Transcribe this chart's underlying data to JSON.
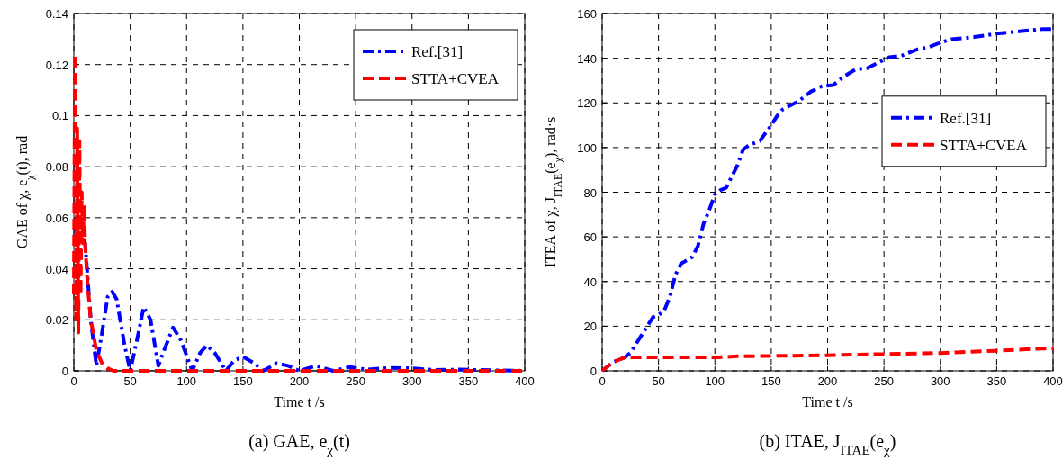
{
  "chart_data": [
    {
      "type": "line",
      "title": "(a) GAE, e$_{χ}$(t)",
      "xlabel": "Time t /s",
      "ylabel": "GAE of χ, e$_{χ}$(t), rad",
      "xlim": [
        0,
        400
      ],
      "xticks": [
        0,
        50,
        100,
        150,
        200,
        250,
        300,
        350,
        400
      ],
      "ylim": [
        0,
        0.14
      ],
      "yticks": [
        0,
        0.02,
        0.04,
        0.06,
        0.08,
        0.1,
        0.12,
        0.14
      ],
      "grid": true,
      "legend": "top right",
      "series": [
        {
          "name": "Ref.[31]",
          "color": "#0000ff",
          "line_style": "dashdot",
          "x": [
            0,
            5,
            10,
            15,
            20,
            25,
            30,
            34,
            38,
            45,
            50,
            55,
            62,
            68,
            75,
            80,
            88,
            95,
            105,
            112,
            118,
            125,
            135,
            142,
            150,
            160,
            168,
            180,
            190,
            200,
            215,
            230,
            245,
            260,
            280,
            300,
            320,
            340,
            400
          ],
          "values": [
            0.055,
            0.057,
            0.05,
            0.02,
            0.002,
            0.015,
            0.029,
            0.031,
            0.028,
            0.01,
            0,
            0.01,
            0.025,
            0.02,
            0.002,
            0.008,
            0.017,
            0.012,
            0,
            0.007,
            0.01,
            0.007,
            0,
            0.004,
            0.0055,
            0.003,
            0,
            0.003,
            0.002,
            0,
            0.002,
            0,
            0.0015,
            0.0005,
            0.0012,
            0.001,
            0.0003,
            0.0005,
            0
          ]
        },
        {
          "name": "STTA+CVEA",
          "color": "#ff0000",
          "line_style": "dashed",
          "x": [
            0,
            1,
            2,
            3,
            4,
            5,
            6,
            7,
            8,
            9,
            10,
            12,
            15,
            20,
            25,
            30,
            35,
            400
          ],
          "values": [
            0.03,
            0.124,
            0.02,
            0.095,
            0.015,
            0.09,
            0.03,
            0.07,
            0.05,
            0.065,
            0.05,
            0.035,
            0.02,
            0.008,
            0.003,
            0.001,
            0,
            0
          ]
        }
      ]
    },
    {
      "type": "line",
      "title": "(b) ITAE, J$_{ITAE}$(e$_{χ}$)",
      "xlabel": "Time t /s",
      "ylabel": "ITEA of χ, J$_{ITAE}$(e$_{χ}$), rad·s",
      "xlim": [
        0,
        400
      ],
      "xticks": [
        0,
        50,
        100,
        150,
        200,
        250,
        300,
        350,
        400
      ],
      "ylim": [
        0,
        160
      ],
      "yticks": [
        0,
        20,
        40,
        60,
        80,
        100,
        120,
        140,
        160
      ],
      "grid": true,
      "legend": "right",
      "series": [
        {
          "name": "Ref.[31]",
          "color": "#0000ff",
          "line_style": "dashdot",
          "x": [
            0,
            10,
            20,
            25,
            30,
            40,
            45,
            50,
            55,
            60,
            65,
            70,
            80,
            85,
            90,
            95,
            100,
            105,
            110,
            120,
            125,
            130,
            140,
            150,
            155,
            160,
            175,
            185,
            195,
            205,
            215,
            225,
            235,
            245,
            255,
            265,
            280,
            290,
            300,
            310,
            330,
            350,
            370,
            390,
            400
          ],
          "values": [
            0,
            4,
            6,
            8,
            12,
            20,
            24,
            25,
            27,
            33,
            43,
            48,
            51,
            56,
            66,
            72,
            79,
            81,
            82,
            92,
            99,
            101,
            103,
            110,
            114,
            117,
            121,
            125,
            127.5,
            128,
            132,
            135,
            135.5,
            138,
            140.5,
            141,
            144,
            145,
            147,
            148.5,
            149.5,
            151,
            152,
            153,
            153
          ]
        },
        {
          "name": "STTA+CVEA",
          "color": "#ff0000",
          "line_style": "dashed",
          "x": [
            0,
            10,
            20,
            25,
            100,
            120,
            170,
            200,
            250,
            300,
            350,
            390,
            400
          ],
          "values": [
            0,
            4,
            6,
            6,
            6,
            6.5,
            6.8,
            7,
            7.5,
            8,
            9,
            10,
            10
          ]
        }
      ]
    }
  ]
}
